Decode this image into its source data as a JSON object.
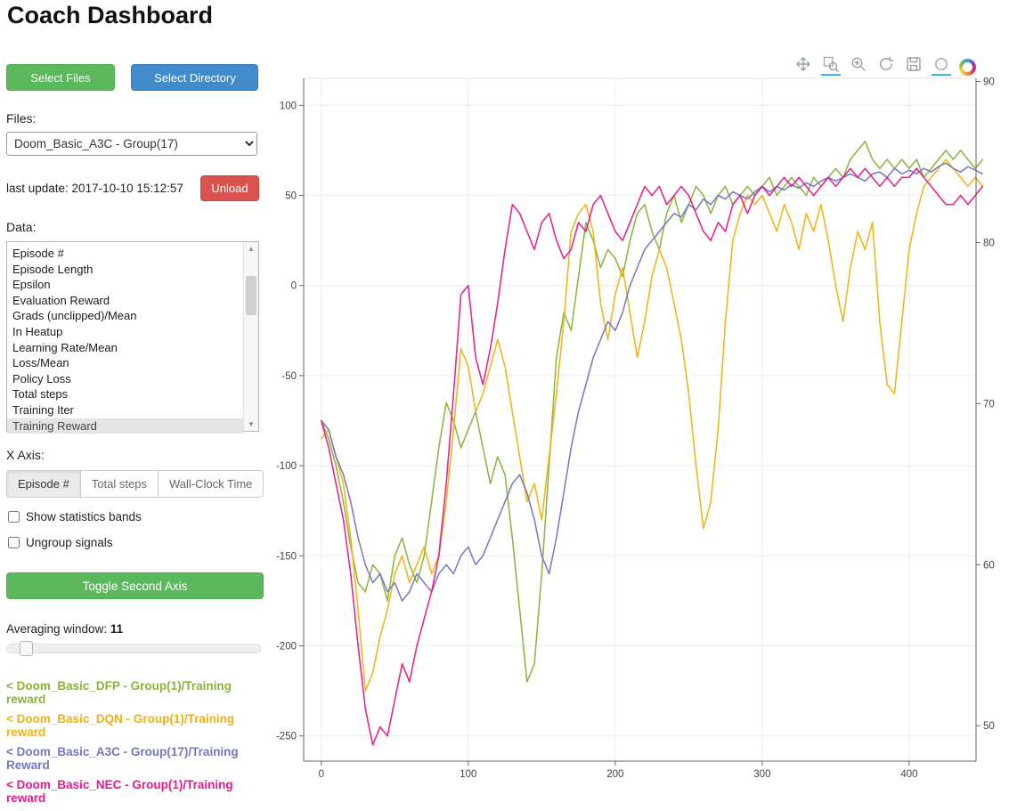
{
  "page": {
    "title": "Coach Dashboard"
  },
  "sidebar": {
    "select_files": "Select Files",
    "select_directory": "Select Directory",
    "files_label": "Files:",
    "files_selected": "Doom_Basic_A3C - Group(17)",
    "last_update": "last update: 2017-10-10 15:12:57",
    "unload": "Unload",
    "data_label": "Data:",
    "data_items": [
      "Episode #",
      "Episode Length",
      "Epsilon",
      "Evaluation Reward",
      "Grads (unclipped)/Mean",
      "In Heatup",
      "Learning Rate/Mean",
      "Loss/Mean",
      "Policy Loss",
      "Total steps",
      "Training Iter",
      "Training Reward"
    ],
    "data_selected": "Training Reward",
    "xaxis_label": "X Axis:",
    "xaxis_options": [
      "Episode #",
      "Total steps",
      "Wall-Clock Time"
    ],
    "xaxis_selected": "Episode #",
    "checkboxes": [
      {
        "label": "Show statistics bands",
        "checked": false
      },
      {
        "label": "Ungroup signals",
        "checked": false
      }
    ],
    "toggle_second_axis": "Toggle Second Axis",
    "averaging_label": "Averaging window:",
    "averaging_value": "11"
  },
  "toolbar": {
    "tools": [
      {
        "name": "pan",
        "active": false
      },
      {
        "name": "box-zoom",
        "active": true
      },
      {
        "name": "wheel-zoom",
        "active": false
      },
      {
        "name": "reset",
        "active": false
      },
      {
        "name": "save",
        "active": false
      },
      {
        "name": "hover",
        "active": true
      },
      {
        "name": "bokeh-logo",
        "active": false
      }
    ]
  },
  "chart_data": {
    "type": "line",
    "title": "",
    "xlabel": "",
    "ylabel": "",
    "grid": true,
    "legend_position": "sidebar-bottom-left",
    "xlim": [
      -12,
      445.5
    ],
    "ylim": [
      -264,
      115
    ],
    "ylim2": [
      47.8,
      90.2
    ],
    "xticks": [
      0,
      100,
      200,
      300,
      400
    ],
    "yticks_left": [
      100,
      50,
      0,
      -50,
      -100,
      -150,
      -200,
      -250
    ],
    "yticks_right": [
      90,
      80,
      70,
      60,
      50
    ],
    "x": [
      0,
      5,
      10,
      15,
      20,
      25,
      30,
      35,
      40,
      45,
      50,
      55,
      60,
      65,
      70,
      75,
      80,
      85,
      90,
      95,
      100,
      105,
      110,
      115,
      120,
      125,
      130,
      135,
      140,
      145,
      150,
      155,
      160,
      165,
      170,
      175,
      180,
      185,
      190,
      195,
      200,
      205,
      210,
      215,
      220,
      225,
      230,
      235,
      240,
      245,
      250,
      255,
      260,
      265,
      270,
      275,
      280,
      285,
      290,
      295,
      300,
      305,
      310,
      315,
      320,
      325,
      330,
      335,
      340,
      345,
      350,
      355,
      360,
      365,
      370,
      375,
      380,
      385,
      390,
      395,
      400,
      405,
      410,
      415,
      420,
      425,
      430,
      435,
      440,
      445,
      450
    ],
    "series": [
      {
        "name": "Doom_Basic_DFP - Group(1)",
        "legend_label": "< Doom_Basic_DFP - Group(1)/Training reward",
        "color": "#8ab33c",
        "values": [
          -75,
          -85,
          -100,
          -120,
          -145,
          -165,
          -170,
          -155,
          -160,
          -175,
          -150,
          -140,
          -155,
          -165,
          -150,
          -120,
          -90,
          -65,
          -75,
          -90,
          -80,
          -70,
          -90,
          -110,
          -95,
          -105,
          -140,
          -180,
          -220,
          -210,
          -160,
          -100,
          -40,
          -15,
          -25,
          5,
          35,
          25,
          10,
          20,
          15,
          5,
          25,
          40,
          45,
          30,
          20,
          40,
          50,
          35,
          45,
          55,
          50,
          40,
          50,
          55,
          45,
          50,
          55,
          50,
          55,
          60,
          50,
          55,
          60,
          55,
          50,
          60,
          55,
          60,
          65,
          60,
          70,
          75,
          80,
          70,
          65,
          70,
          65,
          70,
          65,
          70,
          60,
          65,
          70,
          75,
          70,
          75,
          70,
          65,
          70
        ]
      },
      {
        "name": "Doom_Basic_DQN - Group(1)",
        "legend_label": "< Doom_Basic_DQN - Group(1)/Training reward",
        "color": "#eeb211",
        "values": [
          -85,
          -80,
          -95,
          -110,
          -140,
          -180,
          -225,
          -215,
          -195,
          -180,
          -160,
          -150,
          -165,
          -155,
          -145,
          -160,
          -150,
          -120,
          -80,
          -35,
          -45,
          -70,
          -60,
          -45,
          -30,
          -45,
          -70,
          -95,
          -120,
          -110,
          -130,
          -95,
          -60,
          -20,
          30,
          40,
          45,
          30,
          -10,
          -30,
          -5,
          10,
          -15,
          -40,
          -20,
          5,
          20,
          10,
          -10,
          -30,
          -60,
          -100,
          -135,
          -120,
          -80,
          -20,
          25,
          40,
          50,
          45,
          50,
          40,
          30,
          45,
          35,
          20,
          40,
          30,
          45,
          25,
          0,
          -20,
          10,
          30,
          20,
          35,
          -20,
          -55,
          -60,
          -20,
          20,
          40,
          55,
          60,
          65,
          70,
          65,
          60,
          55,
          60,
          55
        ]
      },
      {
        "name": "Doom_Basic_A3C - Group(17)",
        "legend_label": "< Doom_Basic_A3C - Group(17)/Training Reward",
        "color": "#7477c1",
        "values": [
          -75,
          -80,
          -95,
          -105,
          -120,
          -140,
          -155,
          -165,
          -160,
          -170,
          -165,
          -175,
          -170,
          -160,
          -165,
          -170,
          -160,
          -155,
          -160,
          -150,
          -145,
          -155,
          -150,
          -140,
          -130,
          -120,
          -110,
          -105,
          -115,
          -130,
          -150,
          -160,
          -140,
          -115,
          -90,
          -70,
          -55,
          -40,
          -30,
          -20,
          -25,
          -15,
          0,
          10,
          20,
          25,
          30,
          35,
          40,
          38,
          45,
          42,
          48,
          45,
          50,
          48,
          52,
          50,
          48,
          52,
          55,
          52,
          55,
          53,
          56,
          54,
          57,
          55,
          58,
          60,
          58,
          60,
          62,
          60,
          58,
          62,
          63,
          60,
          65,
          62,
          64,
          62,
          65,
          63,
          66,
          68,
          65,
          63,
          66,
          64,
          62
        ]
      },
      {
        "name": "Doom_Basic_NEC - Group(1)",
        "legend_label": "< Doom_Basic_NEC - Group(1)/Training reward",
        "color": "#e61a8d",
        "values": [
          -75,
          -90,
          -110,
          -130,
          -160,
          -200,
          -235,
          -255,
          -245,
          -250,
          -230,
          -210,
          -220,
          -200,
          -185,
          -170,
          -150,
          -110,
          -60,
          -5,
          0,
          -40,
          -55,
          -35,
          -10,
          20,
          45,
          40,
          30,
          20,
          35,
          40,
          25,
          15,
          20,
          35,
          30,
          45,
          50,
          40,
          30,
          25,
          35,
          45,
          55,
          50,
          55,
          45,
          50,
          55,
          50,
          40,
          30,
          25,
          35,
          30,
          45,
          50,
          40,
          50,
          55,
          50,
          55,
          60,
          55,
          60,
          55,
          50,
          55,
          60,
          55,
          60,
          65,
          60,
          65,
          60,
          55,
          60,
          55,
          60,
          60,
          65,
          60,
          55,
          50,
          45,
          45,
          50,
          45,
          50,
          55
        ]
      }
    ]
  }
}
